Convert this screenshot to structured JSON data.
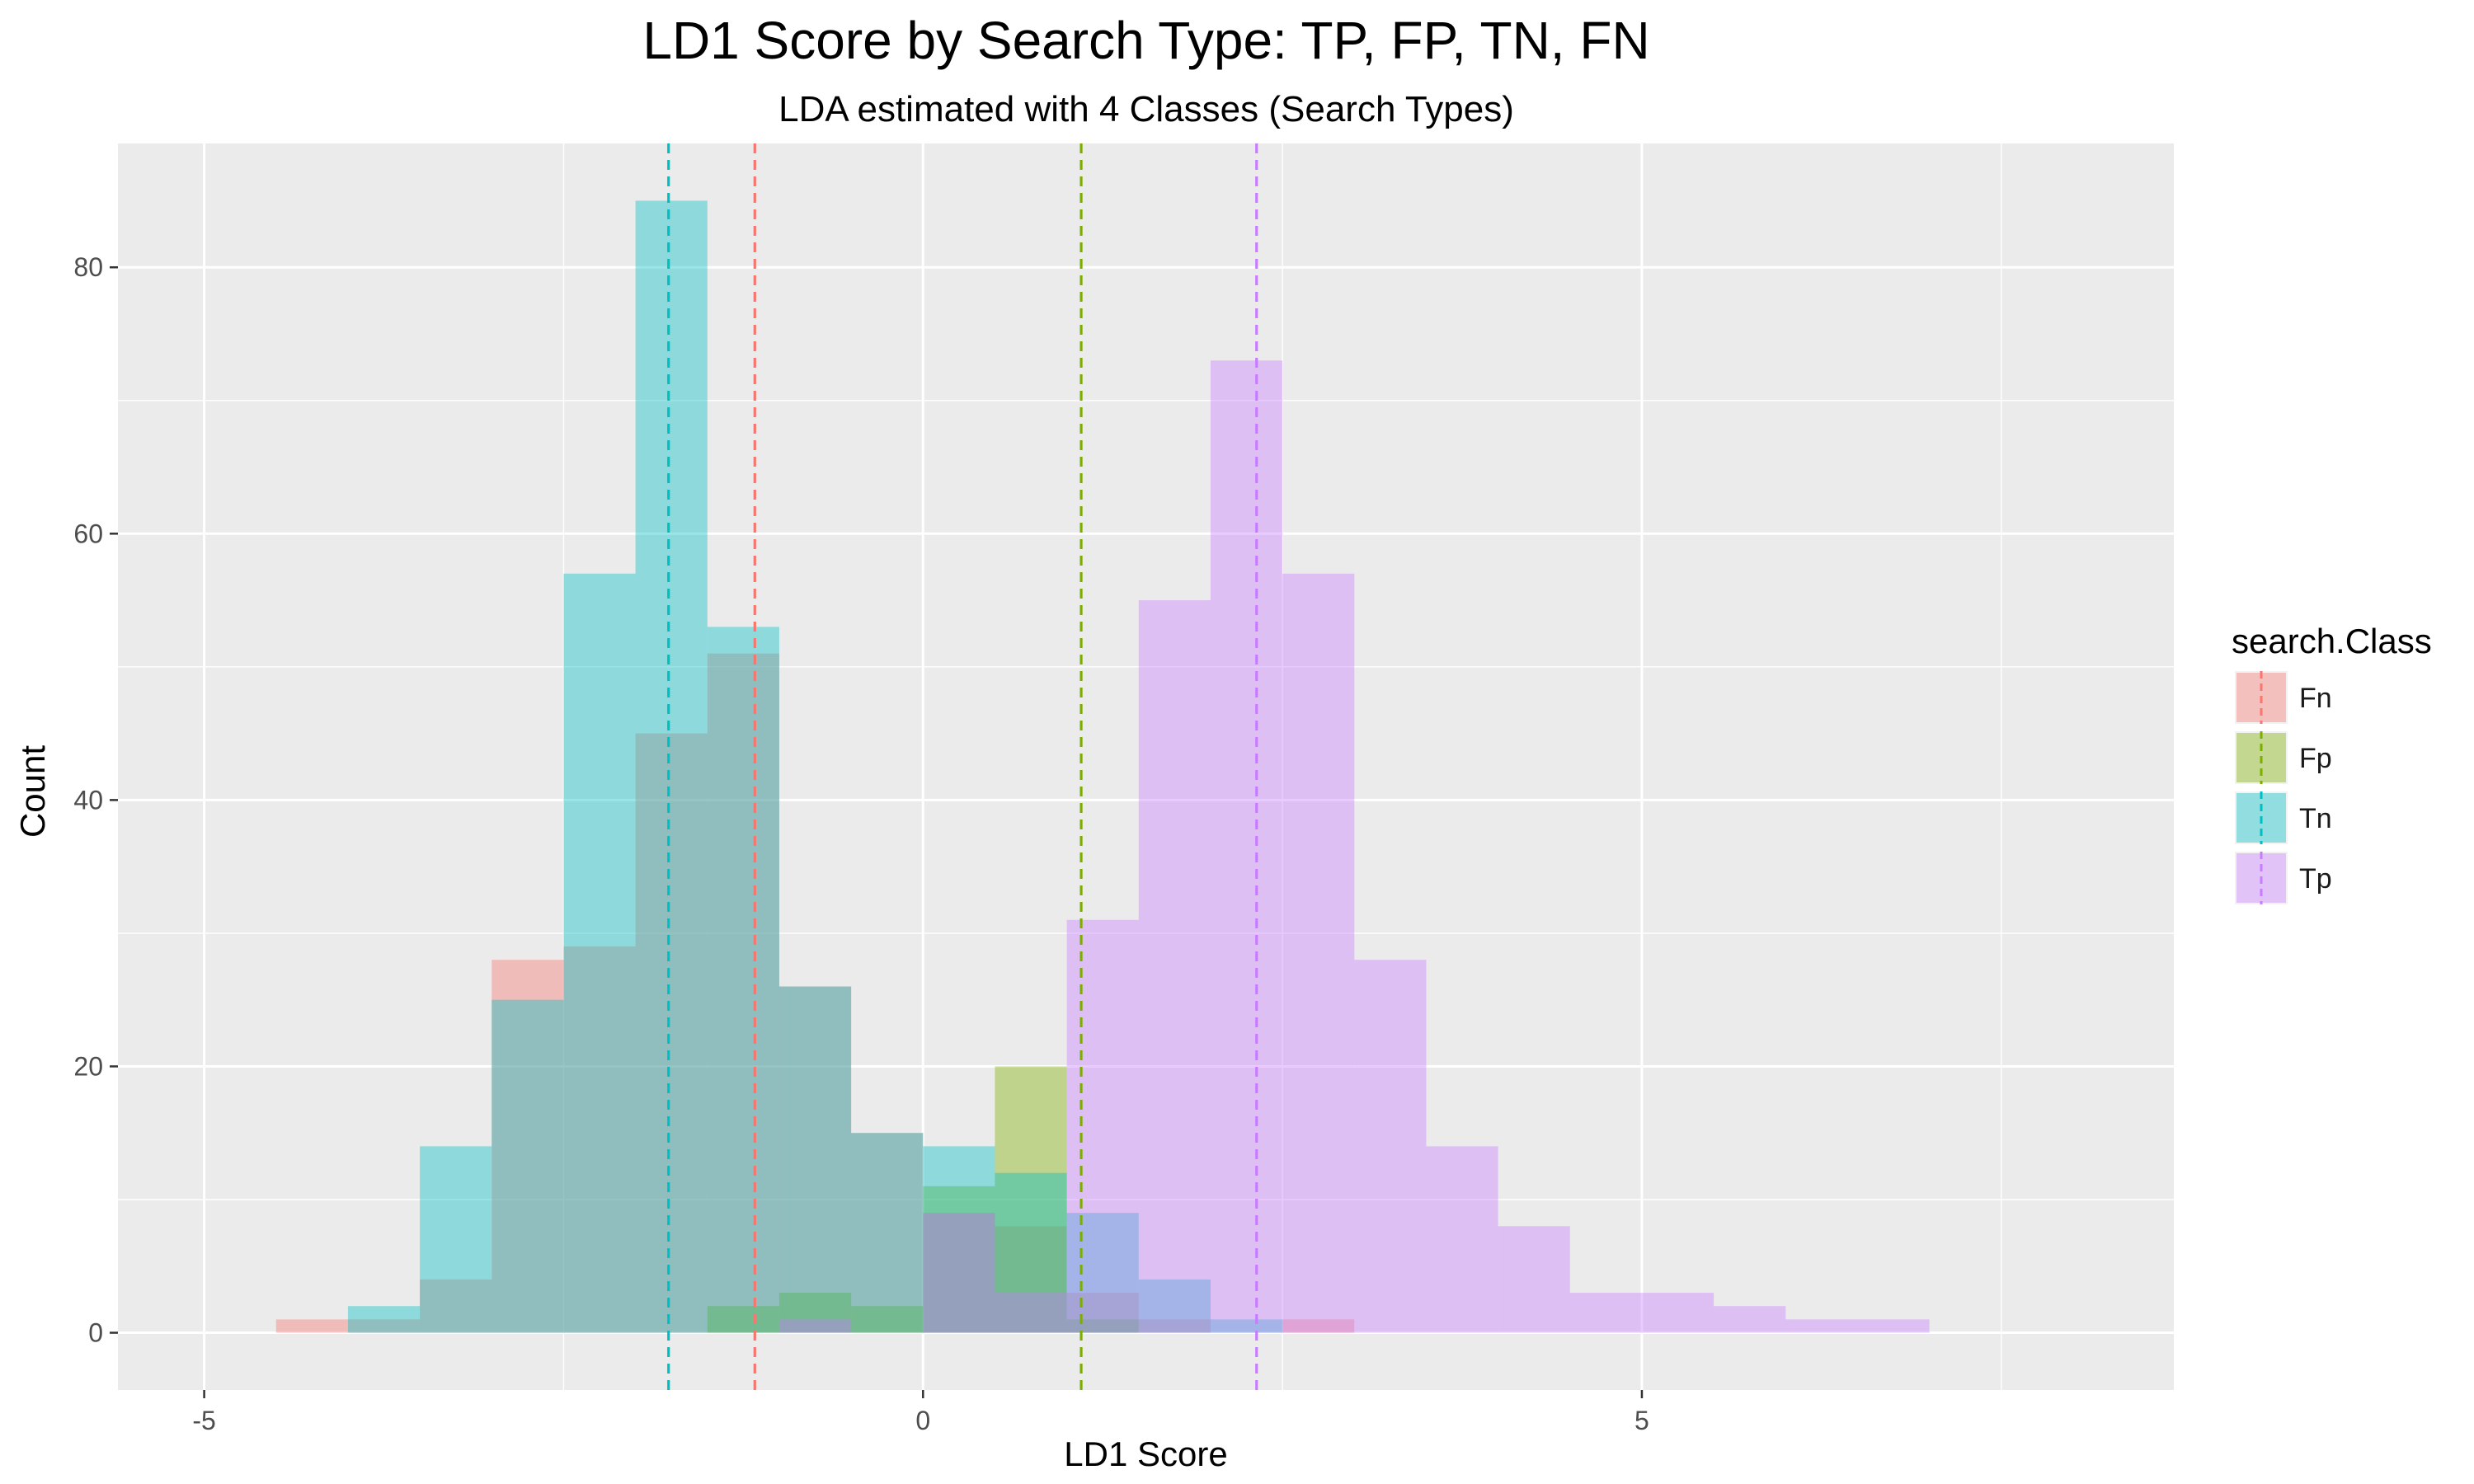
{
  "chart_data": {
    "type": "bar",
    "subtype": "overlapping-histogram",
    "title": "LD1 Score by Search Type: TP, FP, TN, FN",
    "subtitle": "LDA estimated with 4 Classes (Search Types)",
    "xlabel": "LD1 Score",
    "ylabel": "Count",
    "xlim": [
      -5.6,
      8.7
    ],
    "ylim": [
      -4.3,
      89.3
    ],
    "x_ticks": [
      -5,
      0,
      5
    ],
    "y_ticks": [
      0,
      20,
      40,
      60,
      80
    ],
    "x_tick_labels": [
      "-5",
      "0",
      "5"
    ],
    "y_tick_labels": [
      "0",
      "20",
      "40",
      "60",
      "80"
    ],
    "grid": true,
    "bin_width": 0.5,
    "bin_starts": [
      -4.5,
      -4.0,
      -3.5,
      -3.0,
      -2.5,
      -2.0,
      -1.5,
      -1.0,
      -0.5,
      0.0,
      0.5,
      1.0,
      1.5,
      2.0,
      2.5,
      3.0,
      3.5,
      4.0,
      4.5,
      5.0,
      5.5,
      6.0,
      6.5,
      7.0
    ],
    "series": [
      {
        "name": "Fn",
        "color": "#F8766D",
        "values": [
          1,
          1,
          4,
          28,
          29,
          45,
          51,
          26,
          15,
          9,
          8,
          3,
          1,
          0,
          1,
          0,
          0,
          0,
          0,
          0,
          0,
          0,
          0,
          0
        ],
        "mean": -1.17
      },
      {
        "name": "Fp",
        "color": "#7CAE00",
        "values": [
          0,
          0,
          0,
          0,
          0,
          0,
          2,
          3,
          2,
          11,
          20,
          1,
          0,
          0,
          0,
          0,
          0,
          0,
          0,
          0,
          0,
          0,
          0,
          0
        ],
        "mean": 1.1
      },
      {
        "name": "Tn",
        "color": "#00BFC4",
        "values": [
          0,
          2,
          14,
          25,
          57,
          85,
          53,
          26,
          15,
          14,
          12,
          9,
          4,
          1,
          0,
          0,
          0,
          0,
          0,
          0,
          0,
          0,
          0,
          0
        ],
        "mean": -1.77
      },
      {
        "name": "Tp",
        "color": "#C77CFF",
        "values": [
          0,
          0,
          0,
          0,
          0,
          0,
          0,
          1,
          0,
          9,
          3,
          31,
          55,
          73,
          57,
          28,
          14,
          8,
          3,
          3,
          2,
          1,
          1,
          0
        ],
        "mean": 2.32
      }
    ],
    "legend": {
      "title": "search.Class",
      "position": "right",
      "entries": [
        "Fn",
        "Fp",
        "Tn",
        "Tp"
      ]
    }
  }
}
